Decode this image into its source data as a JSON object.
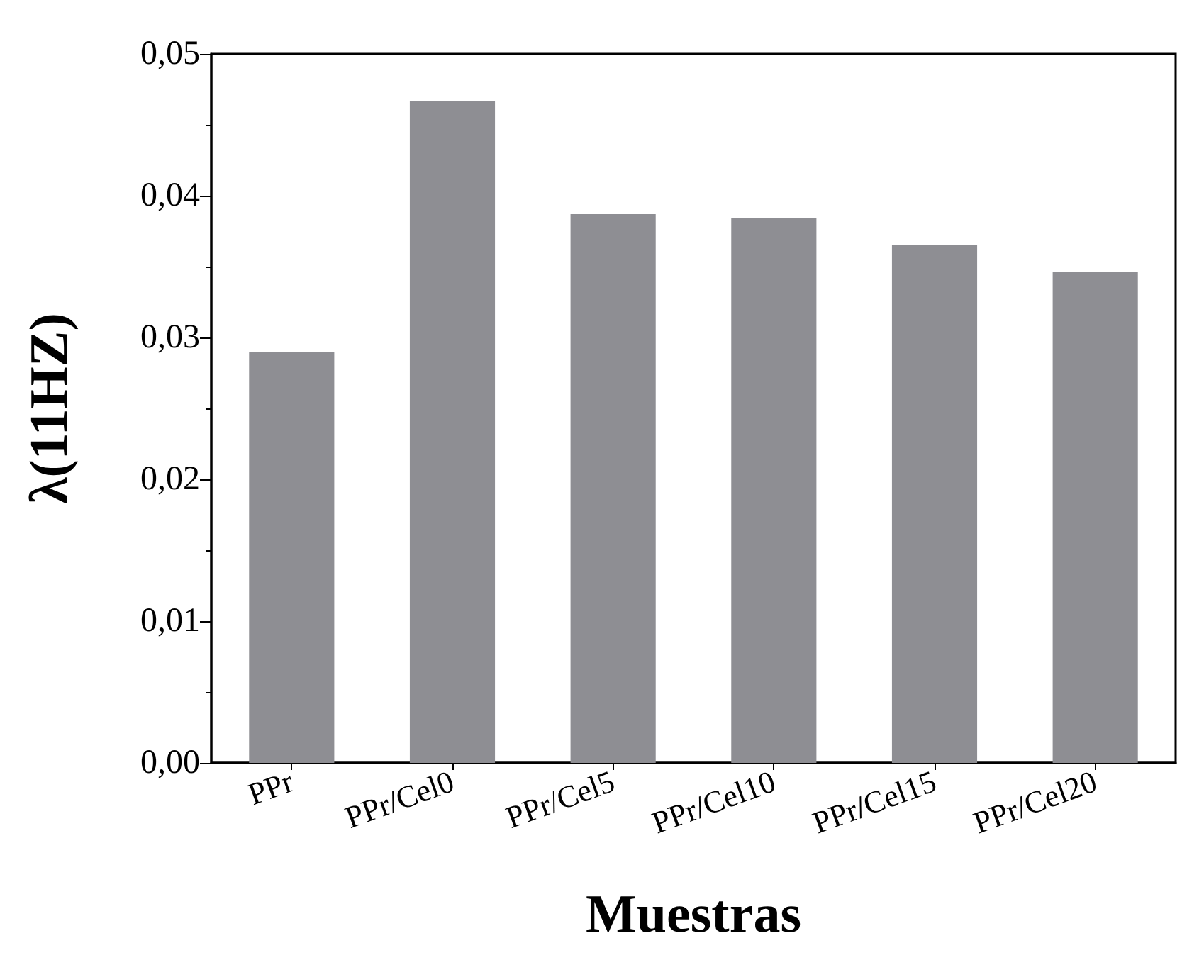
{
  "chart_data": {
    "type": "bar",
    "xlabel": "Muestras",
    "ylabel": "λ(11HZ)",
    "categories": [
      "PPr",
      "PPr/Cel0",
      "PPr/Cel5",
      "PPr/Cel10",
      "PPr/Cel15",
      "PPr/Cel20"
    ],
    "values": [
      0.029,
      0.0467,
      0.0387,
      0.0384,
      0.0365,
      0.0346
    ],
    "color": "#8e8e93",
    "ylim": [
      0,
      0.05
    ],
    "yticks": [
      {
        "value": 0,
        "label": "0,00"
      },
      {
        "value": 0.01,
        "label": "0,01"
      },
      {
        "value": 0.02,
        "label": "0,02"
      },
      {
        "value": 0.03,
        "label": "0,03"
      },
      {
        "value": 0.04,
        "label": "0,04"
      },
      {
        "value": 0.05,
        "label": "0,05"
      }
    ],
    "grid": false
  }
}
